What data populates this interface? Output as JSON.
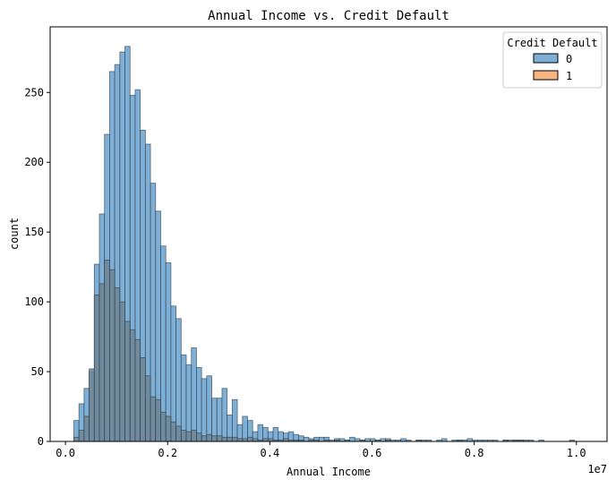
{
  "chart_data": {
    "type": "histogram",
    "title": "Annual Income vs. Credit Default",
    "xlabel": "Annual Income",
    "ylabel": "count",
    "x_offset_label": "1e7",
    "xlim": [
      -0.03,
      1.06
    ],
    "ylim": [
      0,
      297
    ],
    "x_unit_note": "x values in units of 1e7",
    "xticks": [
      0.0,
      0.2,
      0.4,
      0.6,
      0.8,
      1.0
    ],
    "xtick_labels": [
      "0.0",
      "0.2",
      "0.4",
      "0.6",
      "0.8",
      "1.0"
    ],
    "yticks": [
      0,
      50,
      100,
      150,
      200,
      250
    ],
    "ytick_labels": [
      "0",
      "50",
      "100",
      "150",
      "200",
      "250"
    ],
    "bin_start": 0.0164,
    "bin_width": 0.01,
    "legend": {
      "title": "Credit Default",
      "placement": "upper right",
      "entries": [
        "0",
        "1"
      ]
    },
    "colors": {
      "series_0_fill": "#7eafd6",
      "series_1_fill": "#f6b580",
      "overlap_fill": "#6d8594",
      "bar_edge": "#2b3a46"
    },
    "series": [
      {
        "name": "0",
        "values": [
          15,
          27,
          38,
          50,
          127,
          163,
          220,
          265,
          270,
          279,
          283,
          248,
          252,
          223,
          213,
          185,
          165,
          140,
          128,
          97,
          88,
          62,
          55,
          67,
          53,
          45,
          47,
          31,
          31,
          38,
          19,
          30,
          12,
          18,
          15,
          7,
          12,
          10,
          7,
          10,
          7,
          6,
          7,
          5,
          4,
          3,
          2,
          3,
          3,
          3,
          1,
          2,
          2,
          1,
          3,
          2,
          1,
          2,
          2,
          1,
          2,
          2,
          1,
          1,
          2,
          1,
          0,
          1,
          1,
          1,
          0,
          1,
          2,
          0,
          1,
          1,
          1,
          2,
          1,
          1,
          1,
          1,
          1,
          0,
          1,
          1,
          1,
          1,
          1,
          1,
          0,
          1,
          0,
          0,
          0,
          0,
          0,
          1,
          0,
          0
        ]
      },
      {
        "name": "1",
        "values": [
          3,
          8,
          18,
          52,
          105,
          113,
          130,
          123,
          110,
          100,
          86,
          80,
          73,
          60,
          47,
          32,
          30,
          21,
          18,
          14,
          11,
          8,
          7,
          8,
          6,
          4,
          5,
          4,
          4,
          3,
          3,
          3,
          2,
          2,
          3,
          2,
          1,
          2,
          2,
          1,
          1,
          2,
          1,
          1,
          1,
          0,
          1,
          1,
          0,
          1,
          0,
          1,
          0,
          1,
          0,
          0,
          1,
          0,
          0,
          1,
          0,
          1,
          0,
          0,
          0,
          0,
          0,
          1,
          0,
          0,
          0,
          0,
          0,
          0,
          0,
          1,
          0,
          0,
          0,
          0,
          0,
          0,
          0,
          0,
          1,
          0,
          1,
          1,
          0,
          0,
          0,
          0,
          0,
          0,
          0,
          0,
          0,
          0,
          0,
          0
        ]
      }
    ]
  }
}
